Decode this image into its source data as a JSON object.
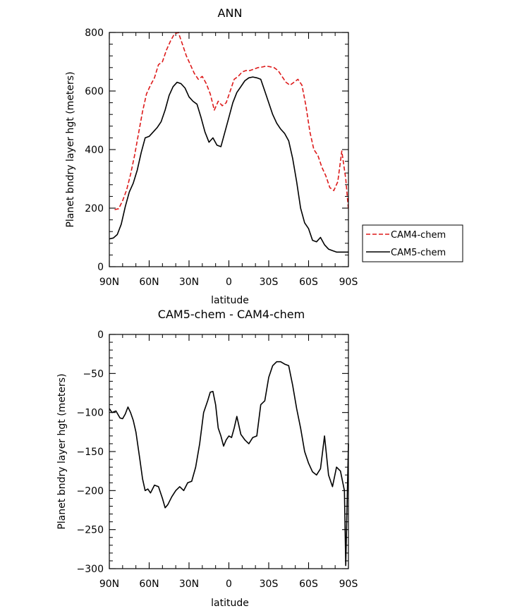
{
  "chart_data": [
    {
      "type": "line",
      "title": "ANN",
      "xlabel": "latitude",
      "ylabel": "Planet bndry layer hgt (meters)",
      "xlim": [
        90,
        -90
      ],
      "ylim": [
        0,
        800
      ],
      "xticks": [
        90,
        60,
        30,
        0,
        -30,
        -60,
        -90
      ],
      "xtick_labels": [
        "90N",
        "60N",
        "30N",
        "0",
        "30S",
        "60S",
        "90S"
      ],
      "yticks": [
        0,
        200,
        400,
        600,
        800
      ],
      "ytick_labels": [
        "0",
        "200",
        "400",
        "600",
        "800"
      ],
      "legend": {
        "placement": "right",
        "entries": [
          "CAM4-chem",
          "CAM5-chem"
        ]
      },
      "series": [
        {
          "name": "CAM4-chem",
          "color": "#dd1a1a",
          "dash": "dashed",
          "x": [
            86,
            83,
            80,
            77,
            74,
            71,
            68,
            65,
            62,
            59,
            56,
            53,
            50,
            47,
            44,
            41,
            38,
            35,
            32,
            29,
            26,
            23,
            20,
            17,
            14,
            11,
            8,
            5,
            2,
            -1,
            -4,
            -7,
            -10,
            -13,
            -16,
            -19,
            -22,
            -25,
            -28,
            -31,
            -34,
            -37,
            -40,
            -43,
            -46,
            -49,
            -52,
            -55,
            -58,
            -61,
            -64,
            -67,
            -70,
            -73,
            -76,
            -79,
            -82,
            -85,
            -88,
            -90
          ],
          "y": [
            195,
            198,
            225,
            262,
            315,
            380,
            455,
            530,
            590,
            620,
            645,
            690,
            700,
            740,
            770,
            795,
            800,
            760,
            720,
            690,
            660,
            640,
            650,
            625,
            590,
            535,
            565,
            550,
            560,
            600,
            640,
            650,
            665,
            670,
            670,
            675,
            680,
            682,
            685,
            683,
            680,
            670,
            650,
            630,
            620,
            630,
            640,
            620,
            550,
            460,
            400,
            380,
            340,
            310,
            270,
            260,
            290,
            395,
            300,
            195
          ]
        },
        {
          "name": "CAM5-chem",
          "color": "#000000",
          "dash": "solid",
          "x": [
            90,
            87,
            84,
            81,
            78,
            75,
            72,
            69,
            66,
            63,
            60,
            57,
            54,
            51,
            48,
            45,
            42,
            39,
            36,
            33,
            30,
            27,
            24,
            21,
            18,
            15,
            12,
            9,
            6,
            3,
            0,
            -3,
            -6,
            -9,
            -12,
            -15,
            -18,
            -21,
            -24,
            -27,
            -30,
            -33,
            -36,
            -39,
            -42,
            -45,
            -48,
            -51,
            -54,
            -57,
            -60,
            -63,
            -66,
            -69,
            -72,
            -75,
            -78,
            -81,
            -84,
            -87,
            -90
          ],
          "y": [
            95,
            98,
            110,
            145,
            205,
            255,
            285,
            330,
            390,
            440,
            445,
            460,
            475,
            495,
            535,
            585,
            615,
            630,
            625,
            610,
            580,
            565,
            555,
            510,
            460,
            425,
            440,
            415,
            410,
            460,
            510,
            560,
            595,
            615,
            635,
            645,
            648,
            645,
            640,
            600,
            560,
            520,
            490,
            470,
            455,
            430,
            370,
            290,
            200,
            150,
            130,
            90,
            85,
            100,
            75,
            60,
            55,
            50,
            50,
            50,
            50
          ]
        }
      ]
    },
    {
      "type": "line",
      "title": "CAM5-chem - CAM4-chem",
      "xlabel": "latitude",
      "ylabel": "Planet bndry layer hgt (meters)",
      "xlim": [
        90,
        -90
      ],
      "ylim": [
        -300,
        0
      ],
      "xticks": [
        90,
        60,
        30,
        0,
        -30,
        -60,
        -90
      ],
      "xtick_labels": [
        "90N",
        "60N",
        "30N",
        "0",
        "30S",
        "60S",
        "90S"
      ],
      "yticks": [
        0,
        -50,
        -100,
        -150,
        -200,
        -250,
        -300
      ],
      "ytick_labels": [
        "0",
        "−50",
        "−100",
        "−150",
        "−200",
        "−250",
        "−300"
      ],
      "series": [
        {
          "color": "#000000",
          "dash": "solid",
          "x": [
            90,
            88,
            85,
            82,
            80,
            78,
            76,
            74,
            72,
            70,
            67,
            65,
            63,
            61,
            59,
            56,
            53,
            50,
            48,
            46,
            43,
            40,
            37,
            34,
            31,
            28,
            25,
            22,
            19,
            16,
            14,
            12,
            10,
            8,
            6,
            4,
            2,
            0,
            -2,
            -4,
            -6,
            -9,
            -12,
            -15,
            -18,
            -21,
            -24,
            -27,
            -30,
            -33,
            -36,
            -39,
            -42,
            -45,
            -48,
            -51,
            -54,
            -57,
            -60,
            -63,
            -66,
            -69,
            -72,
            -75,
            -78,
            -81,
            -84,
            -87,
            -88,
            -90
          ],
          "y": [
            -95,
            -100,
            -98,
            -107,
            -108,
            -102,
            -93,
            -100,
            -110,
            -125,
            -160,
            -185,
            -200,
            -198,
            -203,
            -193,
            -195,
            -210,
            -222,
            -218,
            -208,
            -200,
            -195,
            -200,
            -190,
            -188,
            -170,
            -140,
            -100,
            -85,
            -74,
            -73,
            -90,
            -120,
            -130,
            -143,
            -135,
            -130,
            -132,
            -120,
            -105,
            -128,
            -135,
            -140,
            -132,
            -130,
            -90,
            -85,
            -55,
            -40,
            -35,
            -35,
            -38,
            -40,
            -65,
            -95,
            -120,
            -150,
            -165,
            -176,
            -180,
            -172,
            -130,
            -180,
            -195,
            -170,
            -175,
            -200,
            -296,
            -140
          ]
        }
      ]
    }
  ]
}
